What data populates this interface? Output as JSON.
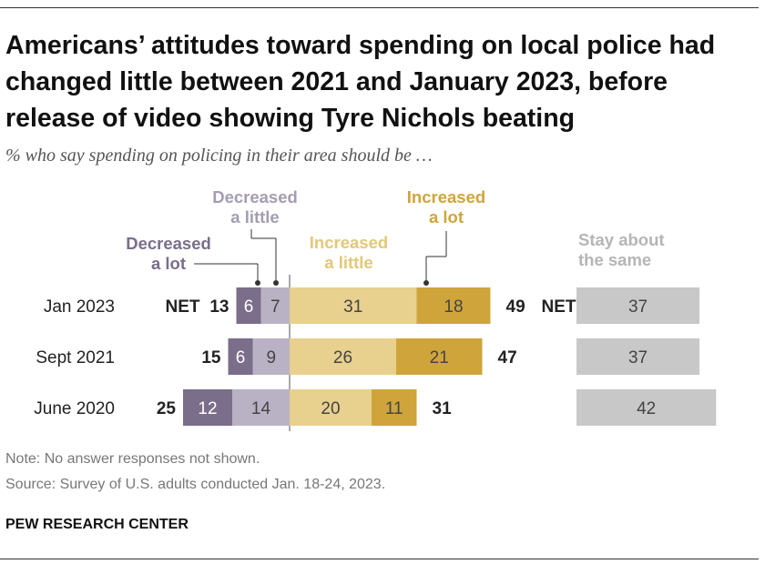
{
  "title": "Americans’ attitudes toward spending on local police had changed little between 2021 and January 2023, before release of video showing Tyre Nichols beating",
  "subtitle": "% who say spending on policing in their area should be …",
  "note": "Note: No answer responses not shown.",
  "source": "Source: Survey of U.S. adults conducted Jan. 18-24, 2023.",
  "brand": "PEW RESEARCH CENTER",
  "colors": {
    "decreased_a_lot": "#7a6e8a",
    "decreased_a_little": "#b9b2c4",
    "increased_a_little": "#e8d08f",
    "increased_a_lot": "#cfa53b",
    "stay_about_same": "#c8c8c8",
    "dec_label": "#7a6e8a",
    "dec_little_label": "#a59db1",
    "inc_little_label": "#e3c877",
    "inc_lot_label": "#cfa53b",
    "stay_label": "#b5b5b5"
  },
  "chart_data": {
    "type": "bar",
    "layout": "diverging-stacked-horizontal",
    "categories": [
      "Jan 2023",
      "Sept 2021",
      "June 2020"
    ],
    "series": [
      {
        "name": "Decreased a lot",
        "values": [
          6,
          6,
          12
        ]
      },
      {
        "name": "Decreased a little",
        "values": [
          7,
          9,
          14
        ]
      },
      {
        "name": "Increased a little",
        "values": [
          31,
          26,
          20
        ]
      },
      {
        "name": "Increased a lot",
        "values": [
          18,
          21,
          11
        ]
      },
      {
        "name": "Stay about the same",
        "values": [
          37,
          37,
          42
        ]
      }
    ],
    "net_decreased": [
      13,
      15,
      25
    ],
    "net_increased": [
      49,
      47,
      31
    ],
    "net_label": "NET",
    "legend_labels": {
      "decreased_a_lot": [
        "Decreased",
        "a lot"
      ],
      "decreased_a_little": [
        "Decreased",
        "a little"
      ],
      "increased_a_little": [
        "Increased",
        "a little"
      ],
      "increased_a_lot": [
        "Increased",
        "a lot"
      ],
      "stay_about_same": [
        "Stay about",
        "the same"
      ]
    },
    "legend_placement": "top",
    "grid": false
  }
}
